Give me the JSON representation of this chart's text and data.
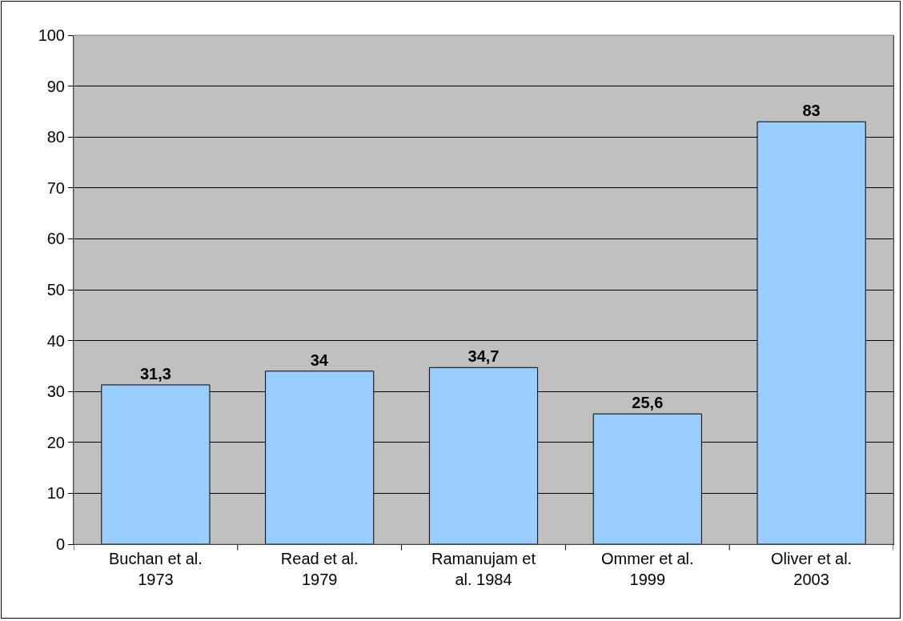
{
  "chart_data": {
    "type": "bar",
    "categories": [
      "Buchan et al.\n1973",
      "Read et al.\n1979",
      "Ramanujam et\nal. 1984",
      "Ommer et al.\n1999",
      "Oliver et al.\n2003"
    ],
    "values": [
      31.3,
      34,
      34.7,
      25.6,
      83
    ],
    "value_labels": [
      "31,3",
      "34",
      "34,7",
      "25,6",
      "83"
    ],
    "color": "#99ccff",
    "ylim": [
      0,
      100
    ],
    "yticks": [
      0,
      10,
      20,
      30,
      40,
      50,
      60,
      70,
      80,
      90,
      100
    ],
    "grid": "y",
    "legend": false
  }
}
